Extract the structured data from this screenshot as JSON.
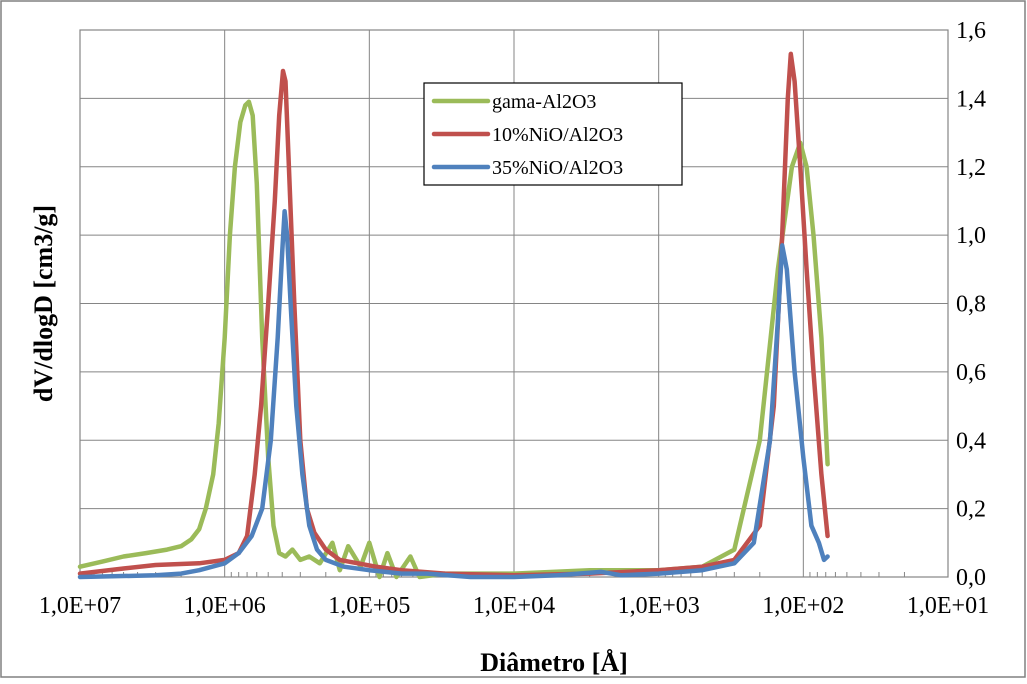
{
  "chart_data": {
    "type": "line",
    "title": "",
    "xlabel": "Diâmetro [Å]",
    "ylabel": "dV/dlogD [cm3/g]",
    "x_scale": "log",
    "x_reversed": true,
    "xlim": [
      10000000,
      10
    ],
    "ylim": [
      0,
      1.6
    ],
    "x_ticks": [
      10000000,
      1000000,
      100000,
      10000,
      1000,
      100,
      10
    ],
    "x_tick_labels": [
      "1,0E+07",
      "1,0E+06",
      "1,0E+05",
      "1,0E+04",
      "1,0E+03",
      "1,0E+02",
      "1,0E+01"
    ],
    "y_ticks": [
      0,
      0.2,
      0.4,
      0.6,
      0.8,
      1.0,
      1.2,
      1.4,
      1.6
    ],
    "y_tick_labels": [
      "0,0",
      "0,2",
      "0,4",
      "0,6",
      "0,8",
      "1,0",
      "1,2",
      "1,4",
      "1,6"
    ],
    "y_axis_side": "right",
    "grid": {
      "horizontal": true,
      "vertical": true
    },
    "legend_position": "top-center",
    "series": [
      {
        "name": "gama-Al2O3",
        "color": "#9BBB59",
        "points": [
          [
            10000000,
            0.03
          ],
          [
            7000000,
            0.045
          ],
          [
            5000000,
            0.06
          ],
          [
            3500000,
            0.07
          ],
          [
            2500000,
            0.08
          ],
          [
            2000000,
            0.09
          ],
          [
            1700000,
            0.11
          ],
          [
            1500000,
            0.14
          ],
          [
            1350000,
            0.2
          ],
          [
            1200000,
            0.3
          ],
          [
            1100000,
            0.45
          ],
          [
            1000000,
            0.7
          ],
          [
            920000,
            1.0
          ],
          [
            850000,
            1.2
          ],
          [
            780000,
            1.33
          ],
          [
            720000,
            1.38
          ],
          [
            680000,
            1.39
          ],
          [
            640000,
            1.35
          ],
          [
            600000,
            1.15
          ],
          [
            550000,
            0.7
          ],
          [
            500000,
            0.35
          ],
          [
            460000,
            0.15
          ],
          [
            420000,
            0.07
          ],
          [
            380000,
            0.06
          ],
          [
            340000,
            0.08
          ],
          [
            300000,
            0.05
          ],
          [
            260000,
            0.06
          ],
          [
            220000,
            0.04
          ],
          [
            180000,
            0.1
          ],
          [
            160000,
            0.02
          ],
          [
            140000,
            0.09
          ],
          [
            115000,
            0.03
          ],
          [
            100000,
            0.1
          ],
          [
            85000,
            0.0
          ],
          [
            75000,
            0.07
          ],
          [
            65000,
            0.0
          ],
          [
            52000,
            0.06
          ],
          [
            45000,
            0.0
          ],
          [
            30000,
            0.01
          ],
          [
            10000,
            0.01
          ],
          [
            3000,
            0.02
          ],
          [
            1000,
            0.02
          ],
          [
            500,
            0.03
          ],
          [
            300,
            0.08
          ],
          [
            200,
            0.4
          ],
          [
            150,
            0.9
          ],
          [
            120,
            1.2
          ],
          [
            105,
            1.27
          ],
          [
            95,
            1.2
          ],
          [
            85,
            1.0
          ],
          [
            75,
            0.7
          ],
          [
            68,
            0.33
          ]
        ]
      },
      {
        "name": "10%NiO/Al2O3",
        "color": "#C0504D",
        "points": [
          [
            10000000,
            0.01
          ],
          [
            5000000,
            0.025
          ],
          [
            3000000,
            0.035
          ],
          [
            1500000,
            0.04
          ],
          [
            1000000,
            0.05
          ],
          [
            800000,
            0.07
          ],
          [
            700000,
            0.12
          ],
          [
            620000,
            0.3
          ],
          [
            560000,
            0.5
          ],
          [
            500000,
            0.8
          ],
          [
            450000,
            1.1
          ],
          [
            420000,
            1.35
          ],
          [
            395000,
            1.48
          ],
          [
            380000,
            1.45
          ],
          [
            360000,
            1.2
          ],
          [
            330000,
            0.8
          ],
          [
            300000,
            0.4
          ],
          [
            270000,
            0.2
          ],
          [
            240000,
            0.13
          ],
          [
            200000,
            0.08
          ],
          [
            160000,
            0.05
          ],
          [
            120000,
            0.04
          ],
          [
            90000,
            0.03
          ],
          [
            60000,
            0.02
          ],
          [
            30000,
            0.01
          ],
          [
            10000,
            0.005
          ],
          [
            3000,
            0.01
          ],
          [
            1000,
            0.02
          ],
          [
            500,
            0.03
          ],
          [
            300,
            0.05
          ],
          [
            200,
            0.15
          ],
          [
            160,
            0.5
          ],
          [
            140,
            1.0
          ],
          [
            128,
            1.4
          ],
          [
            122,
            1.53
          ],
          [
            115,
            1.45
          ],
          [
            105,
            1.2
          ],
          [
            95,
            0.9
          ],
          [
            85,
            0.6
          ],
          [
            75,
            0.3
          ],
          [
            68,
            0.12
          ]
        ]
      },
      {
        "name": "35%NiO/Al2O3",
        "color": "#4F81BD",
        "points": [
          [
            10000000,
            0.0
          ],
          [
            3000000,
            0.005
          ],
          [
            2000000,
            0.01
          ],
          [
            1500000,
            0.02
          ],
          [
            1000000,
            0.04
          ],
          [
            800000,
            0.07
          ],
          [
            650000,
            0.12
          ],
          [
            550000,
            0.2
          ],
          [
            480000,
            0.4
          ],
          [
            430000,
            0.7
          ],
          [
            400000,
            0.95
          ],
          [
            385000,
            1.07
          ],
          [
            370000,
            1.0
          ],
          [
            350000,
            0.8
          ],
          [
            320000,
            0.5
          ],
          [
            290000,
            0.3
          ],
          [
            260000,
            0.15
          ],
          [
            230000,
            0.08
          ],
          [
            200000,
            0.05
          ],
          [
            150000,
            0.03
          ],
          [
            100000,
            0.02
          ],
          [
            60000,
            0.01
          ],
          [
            40000,
            0.01
          ],
          [
            20000,
            0.0
          ],
          [
            10000,
            0.0
          ],
          [
            5000,
            0.005
          ],
          [
            2500,
            0.015
          ],
          [
            1800,
            0.005
          ],
          [
            1000,
            0.01
          ],
          [
            500,
            0.02
          ],
          [
            300,
            0.04
          ],
          [
            220,
            0.1
          ],
          [
            170,
            0.4
          ],
          [
            150,
            0.75
          ],
          [
            140,
            0.97
          ],
          [
            130,
            0.9
          ],
          [
            115,
            0.6
          ],
          [
            100,
            0.35
          ],
          [
            88,
            0.15
          ],
          [
            78,
            0.1
          ],
          [
            72,
            0.05
          ],
          [
            68,
            0.06
          ]
        ]
      }
    ]
  }
}
